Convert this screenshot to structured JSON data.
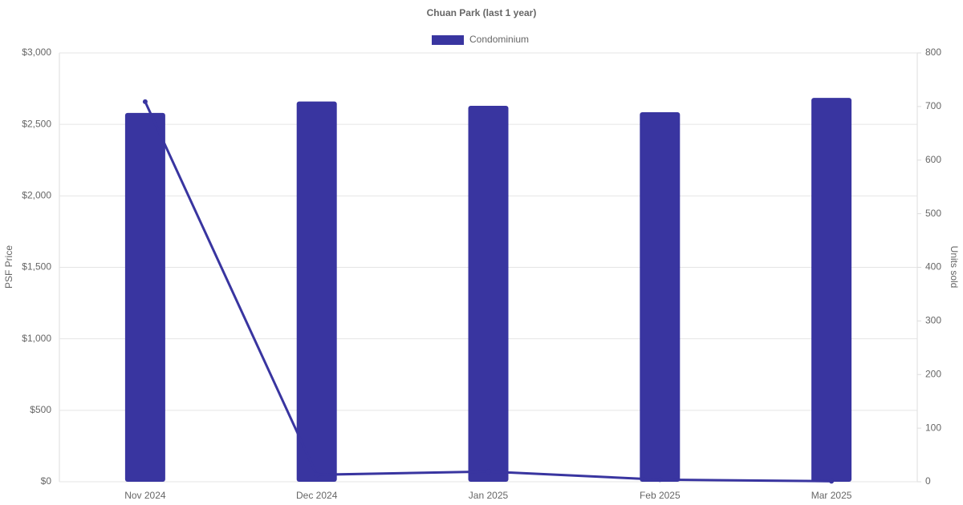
{
  "chart_data": {
    "type": "bar-line",
    "title": "Chuan Park (last 1 year)",
    "categories": [
      "Nov 2024",
      "Dec 2024",
      "Jan 2025",
      "Feb 2025",
      "Mar 2025"
    ],
    "series": [
      {
        "name": "Condominium",
        "type": "bar",
        "color": "#3935a0",
        "axis": "y",
        "values": [
          2580,
          2660,
          2630,
          2585,
          2685
        ]
      },
      {
        "type": "line",
        "color": "#3935a0",
        "axis": "y2",
        "values": [
          709,
          13,
          19,
          4,
          1
        ]
      }
    ],
    "ylabel": "PSF Price",
    "y2label": "Units sold",
    "ylim": [
      0,
      3000
    ],
    "yticks": [
      {
        "value": 0,
        "label": "$0"
      },
      {
        "value": 500,
        "label": "$500"
      },
      {
        "value": 1000,
        "label": "$1,000"
      },
      {
        "value": 1500,
        "label": "$1,500"
      },
      {
        "value": 2000,
        "label": "$2,000"
      },
      {
        "value": 2500,
        "label": "$2,500"
      },
      {
        "value": 3000,
        "label": "$3,000"
      }
    ],
    "y2lim": [
      0,
      800
    ],
    "y2ticks": [
      0,
      100,
      200,
      300,
      400,
      500,
      600,
      700,
      800
    ],
    "grid": true,
    "legend": "top"
  }
}
